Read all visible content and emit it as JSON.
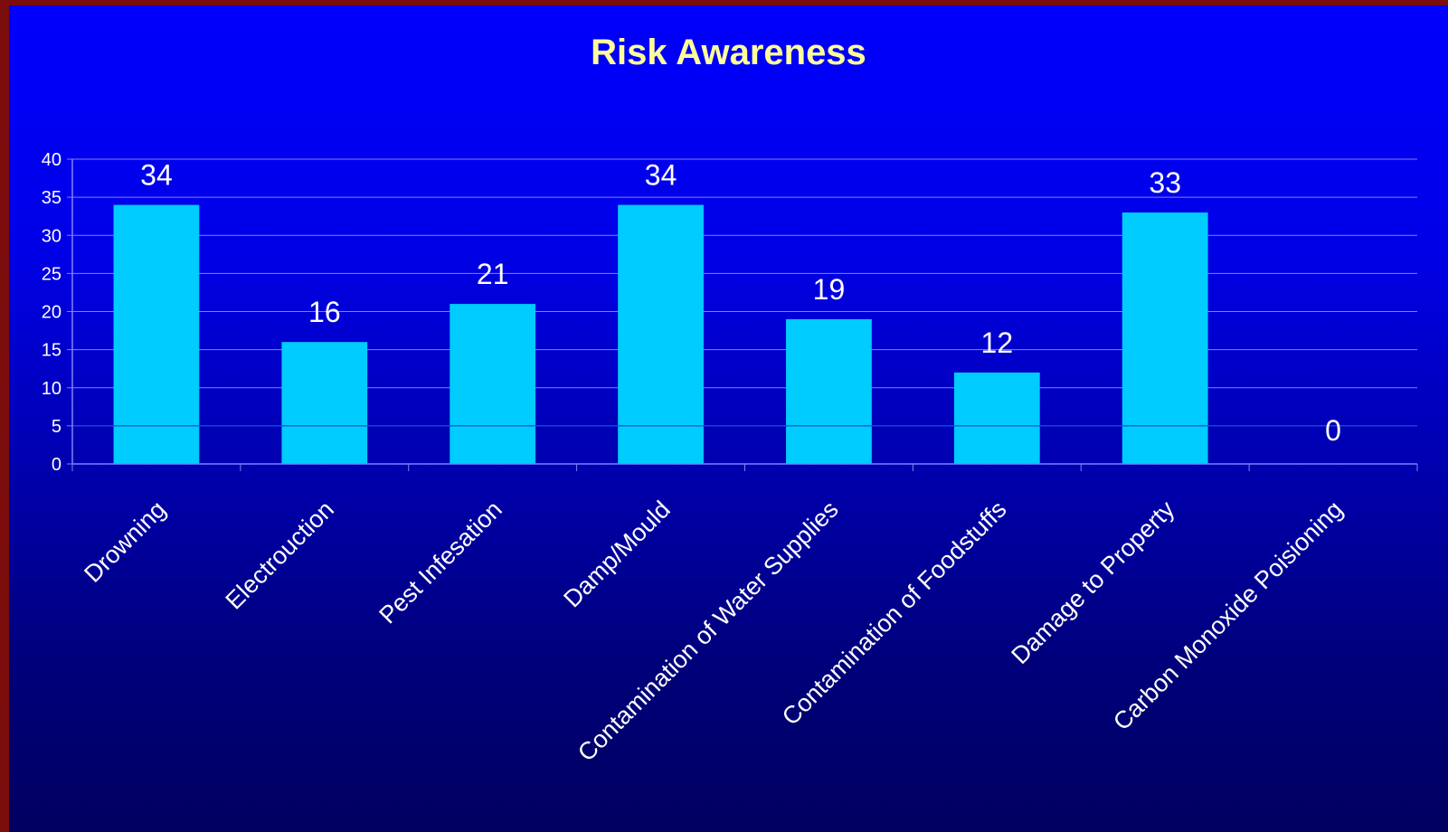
{
  "chart_data": {
    "type": "bar",
    "title": "Risk Awareness",
    "categories": [
      "Drowning",
      "Electrouction",
      "Pest Infesation",
      "Damp/Mould",
      "Contamination of Water Supplies",
      "Contamination of Foodstuffs",
      "Damage to Property",
      "Carbon Monoxide Poisioning"
    ],
    "values": [
      34,
      16,
      21,
      34,
      19,
      12,
      33,
      0
    ],
    "ylim": [
      0,
      40
    ],
    "yticks": [
      0,
      5,
      10,
      15,
      20,
      25,
      30,
      35,
      40
    ],
    "grid": true,
    "data_labels": true,
    "xlabel": "",
    "ylabel": ""
  },
  "colors": {
    "bar": "#00ccff",
    "title": "#ffff99",
    "text": "#ffffff",
    "gridline": "#8080ff"
  }
}
